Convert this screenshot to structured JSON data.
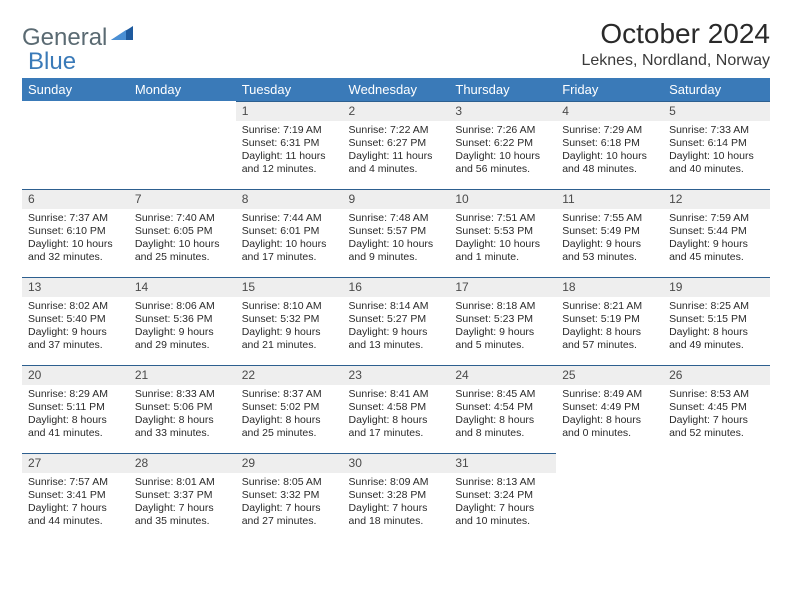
{
  "logo": {
    "part1": "General",
    "part2": "Blue"
  },
  "title": "October 2024",
  "location": "Leknes, Nordland, Norway",
  "colors": {
    "header_bg": "#3a7ab8",
    "header_text": "#ffffff",
    "daynum_bg": "#eeeeee",
    "daynum_border": "#2d5f8f",
    "logo_gray": "#5a6a72",
    "logo_blue": "#3a7ab8",
    "body_text": "#2a2a2a",
    "page_bg": "#ffffff"
  },
  "typography": {
    "title_fontsize": 28,
    "location_fontsize": 16,
    "weekday_fontsize": 13,
    "daynum_fontsize": 12,
    "body_fontsize": 10.5
  },
  "weekdays": [
    "Sunday",
    "Monday",
    "Tuesday",
    "Wednesday",
    "Thursday",
    "Friday",
    "Saturday"
  ],
  "weeks": [
    [
      null,
      null,
      {
        "n": "1",
        "sr": "Sunrise: 7:19 AM",
        "ss": "Sunset: 6:31 PM",
        "dl1": "Daylight: 11 hours",
        "dl2": "and 12 minutes."
      },
      {
        "n": "2",
        "sr": "Sunrise: 7:22 AM",
        "ss": "Sunset: 6:27 PM",
        "dl1": "Daylight: 11 hours",
        "dl2": "and 4 minutes."
      },
      {
        "n": "3",
        "sr": "Sunrise: 7:26 AM",
        "ss": "Sunset: 6:22 PM",
        "dl1": "Daylight: 10 hours",
        "dl2": "and 56 minutes."
      },
      {
        "n": "4",
        "sr": "Sunrise: 7:29 AM",
        "ss": "Sunset: 6:18 PM",
        "dl1": "Daylight: 10 hours",
        "dl2": "and 48 minutes."
      },
      {
        "n": "5",
        "sr": "Sunrise: 7:33 AM",
        "ss": "Sunset: 6:14 PM",
        "dl1": "Daylight: 10 hours",
        "dl2": "and 40 minutes."
      }
    ],
    [
      {
        "n": "6",
        "sr": "Sunrise: 7:37 AM",
        "ss": "Sunset: 6:10 PM",
        "dl1": "Daylight: 10 hours",
        "dl2": "and 32 minutes."
      },
      {
        "n": "7",
        "sr": "Sunrise: 7:40 AM",
        "ss": "Sunset: 6:05 PM",
        "dl1": "Daylight: 10 hours",
        "dl2": "and 25 minutes."
      },
      {
        "n": "8",
        "sr": "Sunrise: 7:44 AM",
        "ss": "Sunset: 6:01 PM",
        "dl1": "Daylight: 10 hours",
        "dl2": "and 17 minutes."
      },
      {
        "n": "9",
        "sr": "Sunrise: 7:48 AM",
        "ss": "Sunset: 5:57 PM",
        "dl1": "Daylight: 10 hours",
        "dl2": "and 9 minutes."
      },
      {
        "n": "10",
        "sr": "Sunrise: 7:51 AM",
        "ss": "Sunset: 5:53 PM",
        "dl1": "Daylight: 10 hours",
        "dl2": "and 1 minute."
      },
      {
        "n": "11",
        "sr": "Sunrise: 7:55 AM",
        "ss": "Sunset: 5:49 PM",
        "dl1": "Daylight: 9 hours",
        "dl2": "and 53 minutes."
      },
      {
        "n": "12",
        "sr": "Sunrise: 7:59 AM",
        "ss": "Sunset: 5:44 PM",
        "dl1": "Daylight: 9 hours",
        "dl2": "and 45 minutes."
      }
    ],
    [
      {
        "n": "13",
        "sr": "Sunrise: 8:02 AM",
        "ss": "Sunset: 5:40 PM",
        "dl1": "Daylight: 9 hours",
        "dl2": "and 37 minutes."
      },
      {
        "n": "14",
        "sr": "Sunrise: 8:06 AM",
        "ss": "Sunset: 5:36 PM",
        "dl1": "Daylight: 9 hours",
        "dl2": "and 29 minutes."
      },
      {
        "n": "15",
        "sr": "Sunrise: 8:10 AM",
        "ss": "Sunset: 5:32 PM",
        "dl1": "Daylight: 9 hours",
        "dl2": "and 21 minutes."
      },
      {
        "n": "16",
        "sr": "Sunrise: 8:14 AM",
        "ss": "Sunset: 5:27 PM",
        "dl1": "Daylight: 9 hours",
        "dl2": "and 13 minutes."
      },
      {
        "n": "17",
        "sr": "Sunrise: 8:18 AM",
        "ss": "Sunset: 5:23 PM",
        "dl1": "Daylight: 9 hours",
        "dl2": "and 5 minutes."
      },
      {
        "n": "18",
        "sr": "Sunrise: 8:21 AM",
        "ss": "Sunset: 5:19 PM",
        "dl1": "Daylight: 8 hours",
        "dl2": "and 57 minutes."
      },
      {
        "n": "19",
        "sr": "Sunrise: 8:25 AM",
        "ss": "Sunset: 5:15 PM",
        "dl1": "Daylight: 8 hours",
        "dl2": "and 49 minutes."
      }
    ],
    [
      {
        "n": "20",
        "sr": "Sunrise: 8:29 AM",
        "ss": "Sunset: 5:11 PM",
        "dl1": "Daylight: 8 hours",
        "dl2": "and 41 minutes."
      },
      {
        "n": "21",
        "sr": "Sunrise: 8:33 AM",
        "ss": "Sunset: 5:06 PM",
        "dl1": "Daylight: 8 hours",
        "dl2": "and 33 minutes."
      },
      {
        "n": "22",
        "sr": "Sunrise: 8:37 AM",
        "ss": "Sunset: 5:02 PM",
        "dl1": "Daylight: 8 hours",
        "dl2": "and 25 minutes."
      },
      {
        "n": "23",
        "sr": "Sunrise: 8:41 AM",
        "ss": "Sunset: 4:58 PM",
        "dl1": "Daylight: 8 hours",
        "dl2": "and 17 minutes."
      },
      {
        "n": "24",
        "sr": "Sunrise: 8:45 AM",
        "ss": "Sunset: 4:54 PM",
        "dl1": "Daylight: 8 hours",
        "dl2": "and 8 minutes."
      },
      {
        "n": "25",
        "sr": "Sunrise: 8:49 AM",
        "ss": "Sunset: 4:49 PM",
        "dl1": "Daylight: 8 hours",
        "dl2": "and 0 minutes."
      },
      {
        "n": "26",
        "sr": "Sunrise: 8:53 AM",
        "ss": "Sunset: 4:45 PM",
        "dl1": "Daylight: 7 hours",
        "dl2": "and 52 minutes."
      }
    ],
    [
      {
        "n": "27",
        "sr": "Sunrise: 7:57 AM",
        "ss": "Sunset: 3:41 PM",
        "dl1": "Daylight: 7 hours",
        "dl2": "and 44 minutes."
      },
      {
        "n": "28",
        "sr": "Sunrise: 8:01 AM",
        "ss": "Sunset: 3:37 PM",
        "dl1": "Daylight: 7 hours",
        "dl2": "and 35 minutes."
      },
      {
        "n": "29",
        "sr": "Sunrise: 8:05 AM",
        "ss": "Sunset: 3:32 PM",
        "dl1": "Daylight: 7 hours",
        "dl2": "and 27 minutes."
      },
      {
        "n": "30",
        "sr": "Sunrise: 8:09 AM",
        "ss": "Sunset: 3:28 PM",
        "dl1": "Daylight: 7 hours",
        "dl2": "and 18 minutes."
      },
      {
        "n": "31",
        "sr": "Sunrise: 8:13 AM",
        "ss": "Sunset: 3:24 PM",
        "dl1": "Daylight: 7 hours",
        "dl2": "and 10 minutes."
      },
      null,
      null
    ]
  ]
}
